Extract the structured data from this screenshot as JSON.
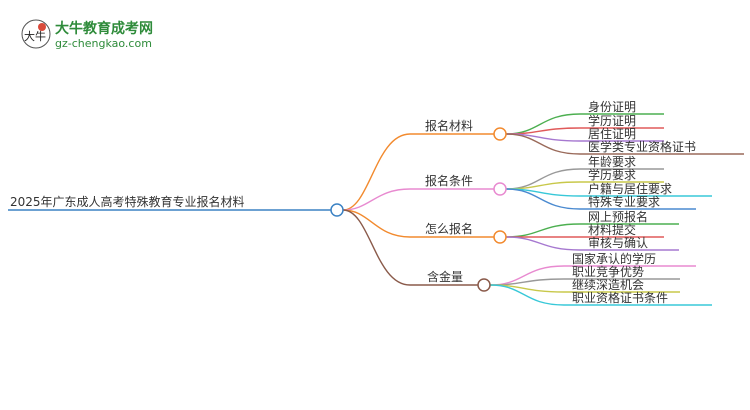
{
  "logo": {
    "title": "大牛教育成考网",
    "url_text": "gz-chengkao.com",
    "mark_text": "大牛"
  },
  "root": {
    "label": "2025年广东成人高考特殊教育专业报名材料",
    "color": "#3b82c4"
  },
  "branches": [
    {
      "label": "报名材料",
      "color": "#f28a2e",
      "children": [
        {
          "label": "身份证明",
          "color": "#4caf50"
        },
        {
          "label": "学历证明",
          "color": "#e05a5a"
        },
        {
          "label": "居住证明",
          "color": "#a678d0"
        },
        {
          "label": "医学类专业资格证书",
          "color": "#9a6a5a"
        }
      ]
    },
    {
      "label": "报名条件",
      "color": "#e88ad0",
      "children": [
        {
          "label": "年龄要求",
          "color": "#999999"
        },
        {
          "label": "学历要求",
          "color": "#c8c84a"
        },
        {
          "label": "户籍与居住要求",
          "color": "#38c8d8"
        },
        {
          "label": "特殊专业要求",
          "color": "#4a8ad0"
        }
      ]
    },
    {
      "label": "怎么报名",
      "color": "#f28a2e",
      "children": [
        {
          "label": "网上预报名",
          "color": "#4caf50"
        },
        {
          "label": "材料提交",
          "color": "#e05a5a"
        },
        {
          "label": "审核与确认",
          "color": "#a678d0"
        }
      ]
    },
    {
      "label": "含金量",
      "color": "#8a5a4a",
      "children": [
        {
          "label": "国家承认的学历",
          "color": "#e88ad0"
        },
        {
          "label": "职业竞争优势",
          "color": "#999999"
        },
        {
          "label": "继续深造机会",
          "color": "#c8c84a"
        },
        {
          "label": "职业资格证书条件",
          "color": "#38c8d8"
        }
      ]
    }
  ]
}
